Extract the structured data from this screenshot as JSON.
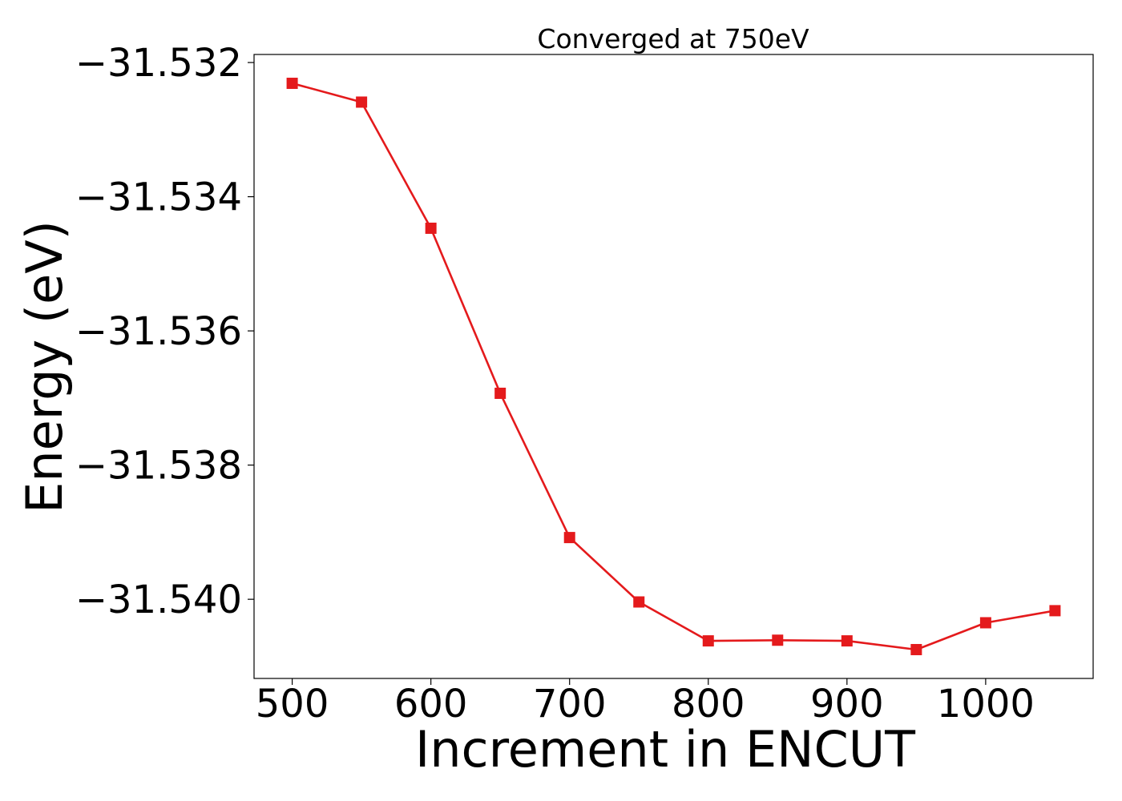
{
  "chart_data": {
    "type": "line",
    "title": "Converged at 750eV",
    "xlabel": "Increment in ENCUT",
    "ylabel": "Energy (eV)",
    "x": [
      500,
      550,
      600,
      650,
      700,
      750,
      800,
      850,
      900,
      950,
      1000,
      1050
    ],
    "series": [
      {
        "values": [
          -31.53231,
          -31.53259,
          -31.53447,
          -31.53693,
          -31.53908,
          -31.54004,
          -31.54062,
          -31.54061,
          -31.54062,
          -31.54075,
          -31.54035,
          -31.54017
        ],
        "color": "#e41a1c",
        "marker": "square"
      }
    ],
    "xlim": [
      472.5,
      1077.5
    ],
    "ylim": [
      -31.54118,
      -31.53188
    ],
    "xticks": [
      500,
      600,
      700,
      800,
      900,
      1000
    ],
    "xtick_labels": [
      "500",
      "600",
      "700",
      "800",
      "900",
      "1000"
    ],
    "yticks": [
      -31.532,
      -31.534,
      -31.536,
      -31.538,
      -31.54
    ],
    "ytick_labels": [
      "−31.532",
      "−31.534",
      "−31.536",
      "−31.538",
      "−31.540"
    ],
    "grid": false,
    "legend": false
  }
}
